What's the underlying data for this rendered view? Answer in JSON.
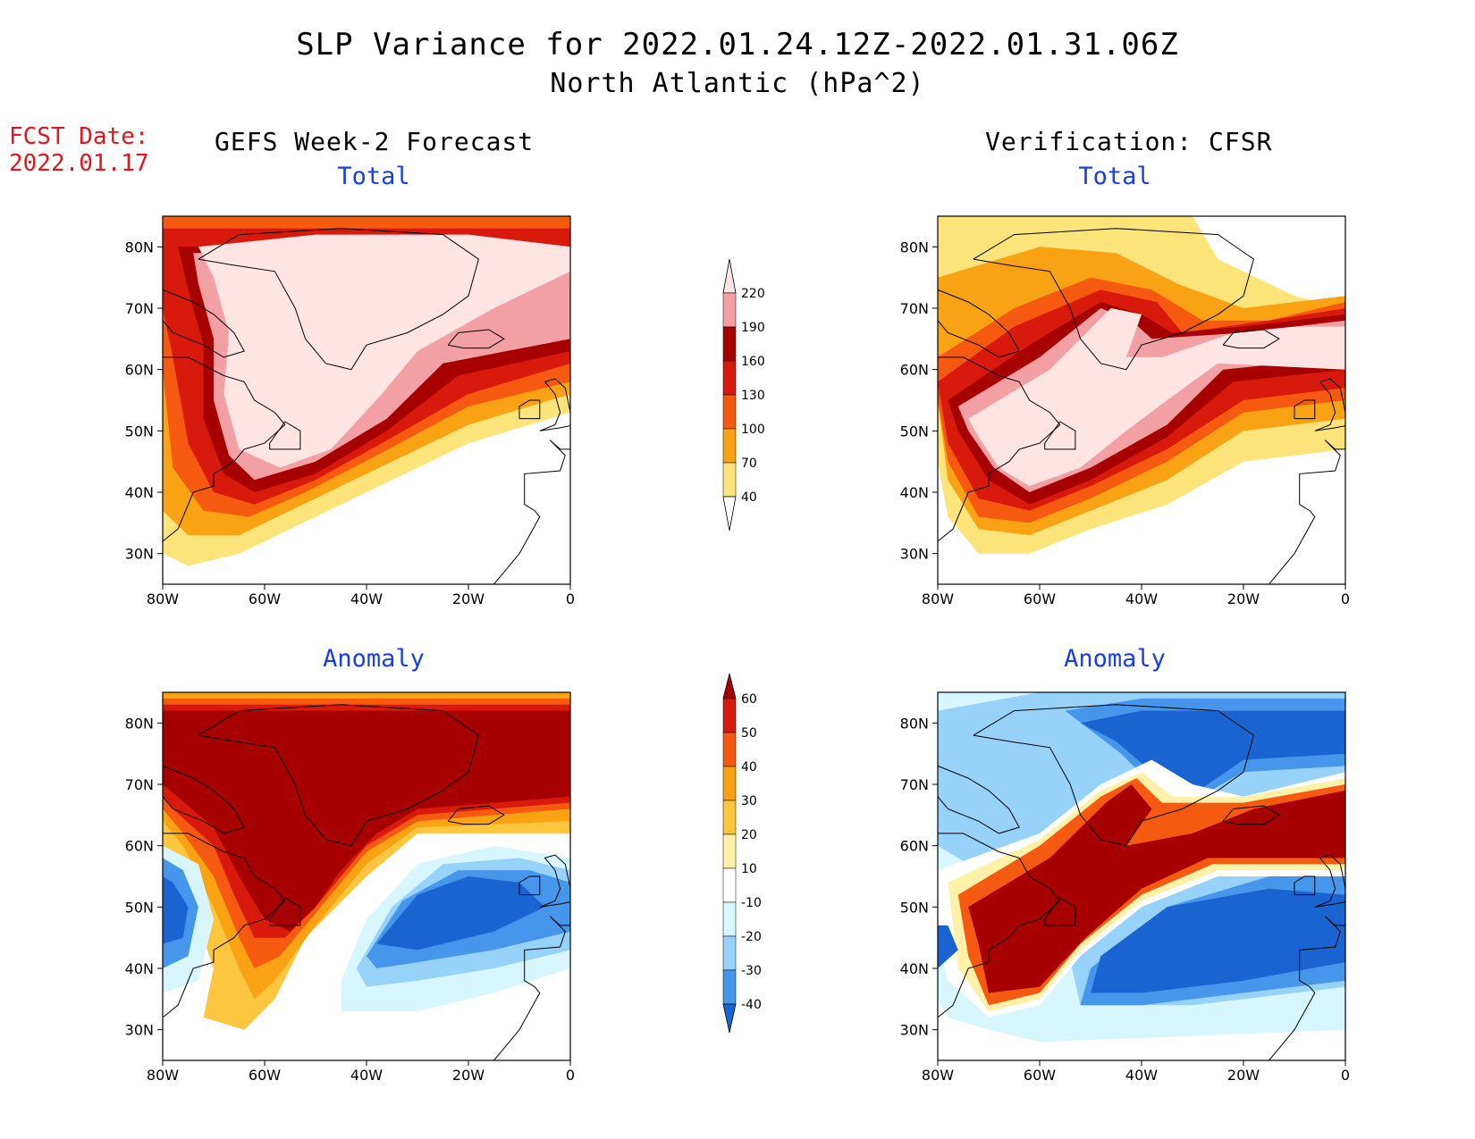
{
  "title": "SLP Variance for 2022.01.24.12Z-2022.01.31.06Z",
  "subtitle": "North Atlantic (hPa^2)",
  "fcst_date_label": "FCST Date:",
  "fcst_date_value": "2022.01.17",
  "left_heading": "GEFS Week-2 Forecast",
  "right_heading": "Verification: CFSR",
  "panels": {
    "top_left_title": "Total",
    "top_right_title": "Total",
    "bottom_left_title": "Anomaly",
    "bottom_right_title": "Anomaly"
  },
  "axes": {
    "lat_labels": [
      "80N",
      "70N",
      "60N",
      "50N",
      "40N",
      "30N"
    ],
    "lon_labels": [
      "80W",
      "60W",
      "40W",
      "20W",
      "0"
    ]
  },
  "colorbar_total": {
    "levels": [
      "220",
      "190",
      "160",
      "130",
      "100",
      "70",
      "40"
    ],
    "colors": [
      "#ffe4e4",
      "#f2a0a4",
      "#a60000",
      "#d81a0c",
      "#f65a10",
      "#f9a314",
      "#fde47a"
    ]
  },
  "colorbar_anomaly": {
    "levels": [
      "60",
      "50",
      "40",
      "30",
      "20",
      "10",
      "-10",
      "-20",
      "-30",
      "-40"
    ],
    "colors": [
      "#a60000",
      "#d81a0c",
      "#f65a10",
      "#f9a314",
      "#fdc63e",
      "#fff2a8",
      "#ffffff",
      "#d8f6ff",
      "#96d2fa",
      "#4696ec",
      "#1a64d2"
    ]
  }
}
